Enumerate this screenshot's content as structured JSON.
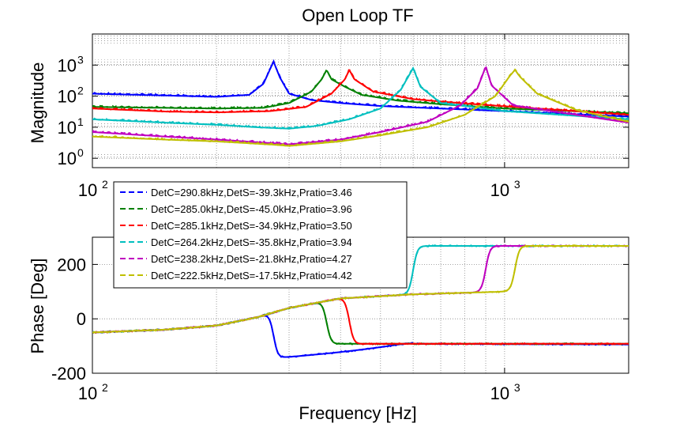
{
  "chart_data": {
    "title": "Open Loop TF",
    "xlabel": "Frequency [Hz]",
    "xscale": "log",
    "xlim": [
      100,
      2000
    ],
    "x_ticks": [
      {
        "base": "10",
        "exp": "2"
      },
      {
        "base": "10",
        "exp": "3"
      }
    ],
    "grid": true,
    "legend_position": "middle-left, between subplots",
    "series": [
      {
        "name": "DetC=290.8kHz,DetS=-39.3kHz,Pratio=3.46",
        "color": "#0000ff",
        "f_res": 275,
        "peak": 1300,
        "phase_drop": true
      },
      {
        "name": "DetC=285.0kHz,DetS=-45.0kHz,Pratio=3.96",
        "color": "#008000",
        "f_res": 370,
        "peak": 700,
        "phase_drop": true
      },
      {
        "name": "DetC=285.1kHz,DetS=-34.9kHz,Pratio=3.50",
        "color": "#ff0000",
        "f_res": 420,
        "peak": 700,
        "phase_drop": true
      },
      {
        "name": "DetC=264.2kHz,DetS=-35.8kHz,Pratio=3.94",
        "color": "#00bfbf",
        "f_res": 600,
        "peak": 800,
        "phase_drop": false
      },
      {
        "name": "DetC=238.2kHz,DetS=-21.8kHz,Pratio=4.27",
        "color": "#bf00bf",
        "f_res": 900,
        "peak": 900,
        "phase_drop": false
      },
      {
        "name": "DetC=222.5kHz,DetS=-17.5kHz,Pratio=4.42",
        "color": "#bfbf00",
        "f_res": 1060,
        "peak": 700,
        "phase_drop": false
      }
    ],
    "magnitude": {
      "type": "line",
      "ylabel": "Magnitude",
      "yscale": "log",
      "ylim": [
        0.5,
        10000
      ],
      "y_ticks": [
        {
          "base": "10",
          "exp": "0"
        },
        {
          "base": "10",
          "exp": "1"
        },
        {
          "base": "10",
          "exp": "2"
        },
        {
          "base": "10",
          "exp": "3"
        }
      ]
    },
    "phase": {
      "type": "line",
      "ylabel": "Phase [Deg]",
      "ylim": [
        -200,
        300
      ],
      "y_ticks": [
        "-200",
        "0",
        "200"
      ]
    }
  }
}
